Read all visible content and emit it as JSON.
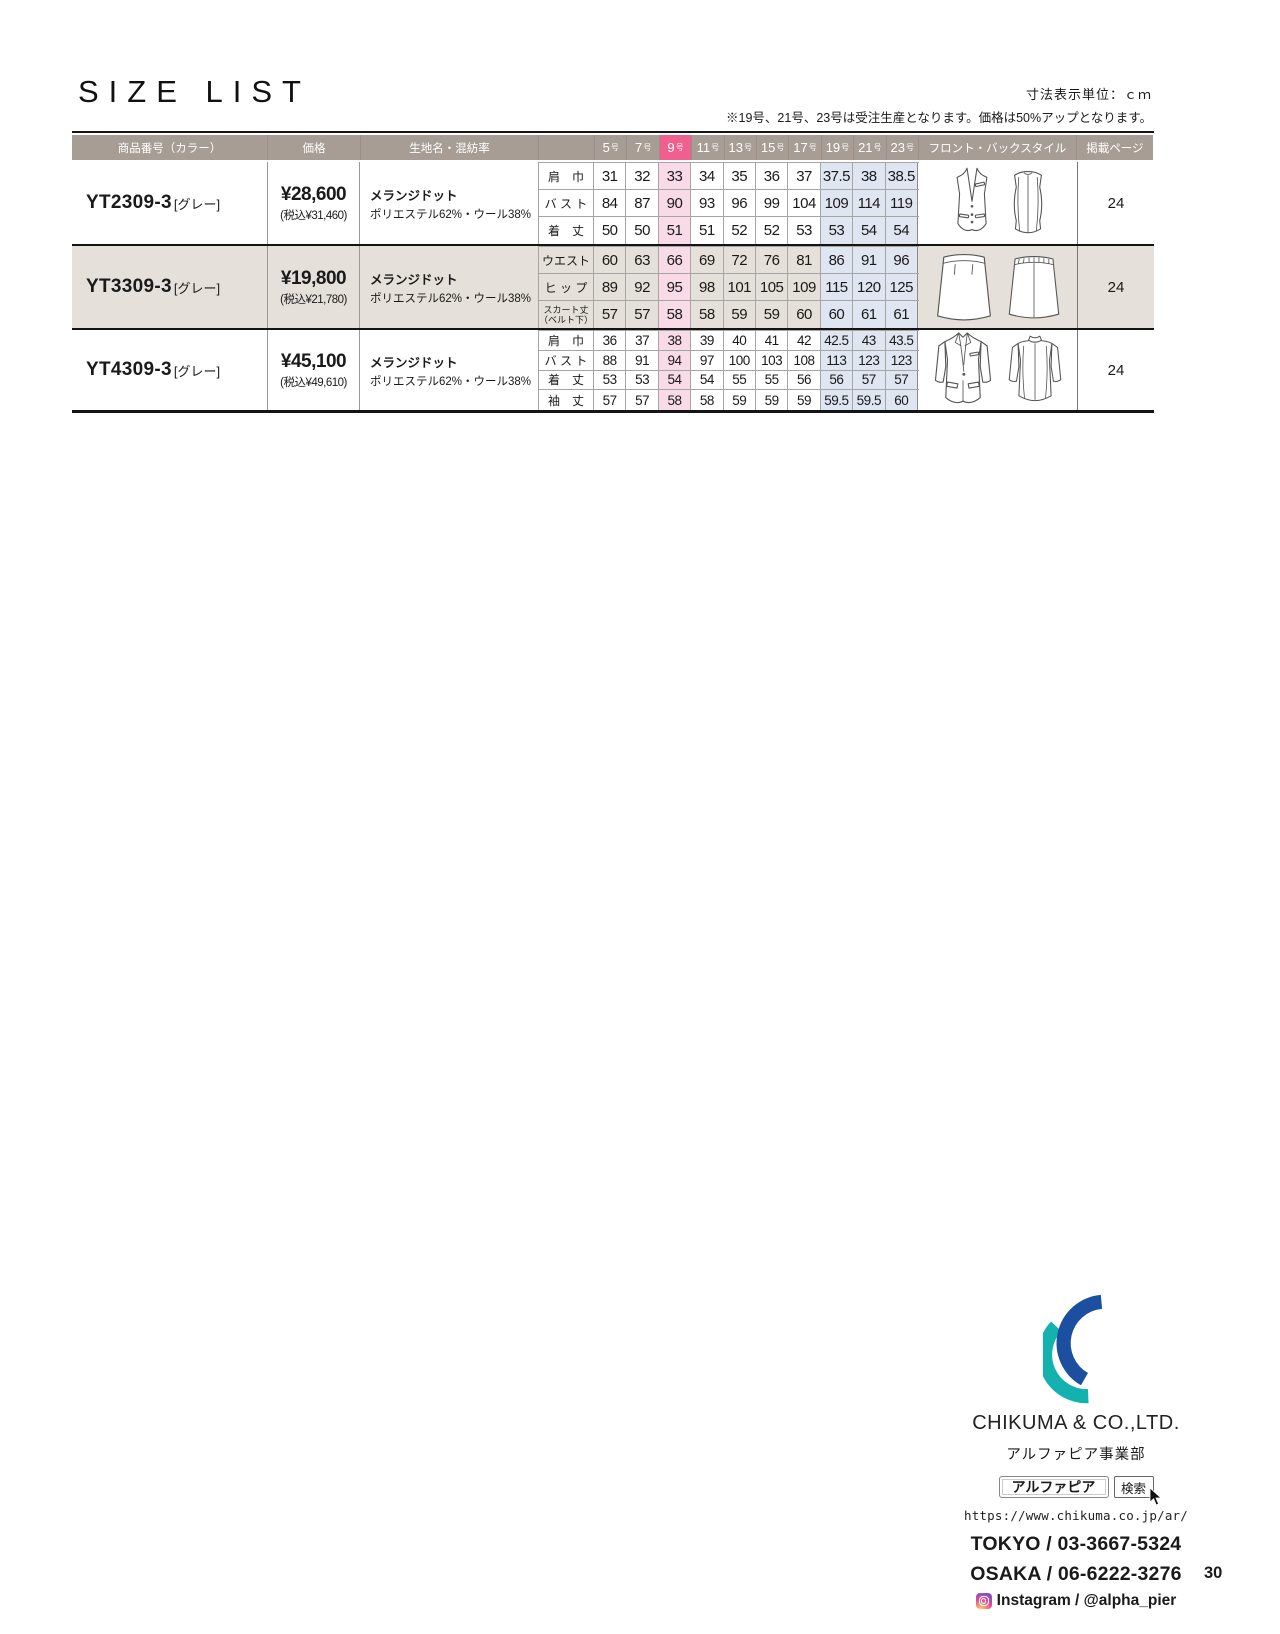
{
  "page": {
    "title": "SIZE LIST",
    "unit_note": "寸法表示単位：ｃｍ",
    "order_note": "※19号、21号、23号は受注生産となります。価格は50%アップとなります。",
    "page_number": "30"
  },
  "colors": {
    "header_taupe": "#a89d94",
    "accent_pink": "#f0608f",
    "highlight_pink": "#f9dbe7",
    "highlight_blue": "#dfe5f1",
    "row_beige": "#e5e0d9",
    "logo_blue": "#1c4f9f",
    "logo_teal": "#14b2ae"
  },
  "table": {
    "headers": {
      "product": "商品番号（カラー）",
      "price": "価格",
      "fabric": "生地名・混紡率",
      "style": "フロント・バックスタイル",
      "page": "掲載ページ"
    },
    "size_headers": [
      "5号",
      "7号",
      "9号",
      "11号",
      "13号",
      "15号",
      "17号",
      "19号",
      "21号",
      "23号"
    ],
    "highlight_index": 2,
    "blue_indices": [
      7,
      8,
      9
    ],
    "rows": [
      {
        "code": "YT2309-3",
        "color": "[グレー]",
        "price_main": "¥28,600",
        "price_tax": "(税込¥31,460)",
        "fabric_name": "メランジドット",
        "fabric_mix": "ポリエステル62%・ウール38%",
        "illustration": "vest",
        "page": "24",
        "measurements": [
          {
            "label": "肩　巾",
            "values": [
              "31",
              "32",
              "33",
              "34",
              "35",
              "36",
              "37",
              "37.5",
              "38",
              "38.5"
            ]
          },
          {
            "label": "バ ス ト",
            "values": [
              "84",
              "87",
              "90",
              "93",
              "96",
              "99",
              "104",
              "109",
              "114",
              "119"
            ]
          },
          {
            "label": "着　丈",
            "values": [
              "50",
              "50",
              "51",
              "51",
              "52",
              "52",
              "53",
              "53",
              "54",
              "54"
            ]
          }
        ]
      },
      {
        "code": "YT3309-3",
        "color": "[グレー]",
        "price_main": "¥19,800",
        "price_tax": "(税込¥21,780)",
        "fabric_name": "メランジドット",
        "fabric_mix": "ポリエステル62%・ウール38%",
        "illustration": "skirt",
        "page": "24",
        "measurements": [
          {
            "label": "ウエスト",
            "values": [
              "60",
              "63",
              "66",
              "69",
              "72",
              "76",
              "81",
              "86",
              "91",
              "96"
            ]
          },
          {
            "label": "ヒ ッ プ",
            "values": [
              "89",
              "92",
              "95",
              "98",
              "101",
              "105",
              "109",
              "115",
              "120",
              "125"
            ]
          },
          {
            "label": "スカート丈\n（ベルト下）",
            "values": [
              "57",
              "57",
              "58",
              "58",
              "59",
              "59",
              "60",
              "60",
              "61",
              "61"
            ]
          }
        ]
      },
      {
        "code": "YT4309-3",
        "color": "[グレー]",
        "price_main": "¥45,100",
        "price_tax": "(税込¥49,610)",
        "fabric_name": "メランジドット",
        "fabric_mix": "ポリエステル62%・ウール38%",
        "illustration": "jacket",
        "page": "24",
        "measurements": [
          {
            "label": "肩　巾",
            "values": [
              "36",
              "37",
              "38",
              "39",
              "40",
              "41",
              "42",
              "42.5",
              "43",
              "43.5"
            ]
          },
          {
            "label": "バ ス ト",
            "values": [
              "88",
              "91",
              "94",
              "97",
              "100",
              "103",
              "108",
              "113",
              "123",
              "123"
            ]
          },
          {
            "label": "着　丈",
            "values": [
              "53",
              "53",
              "54",
              "54",
              "55",
              "55",
              "56",
              "56",
              "57",
              "57"
            ]
          },
          {
            "label": "袖　丈",
            "values": [
              "57",
              "57",
              "58",
              "58",
              "59",
              "59",
              "59",
              "59.5",
              "59.5",
              "60"
            ]
          }
        ]
      }
    ]
  },
  "footer": {
    "company": "CHIKUMA & CO.,LTD.",
    "division": "アルファピア事業部",
    "search_value": "アルファピア",
    "search_button": "検索",
    "url": "https://www.chikuma.co.jp/ar/",
    "phone_tokyo": "TOKYO / 03-3667-5324",
    "phone_osaka": "OSAKA / 06-6222-3276",
    "instagram": "Instagram / @alpha_pier"
  }
}
